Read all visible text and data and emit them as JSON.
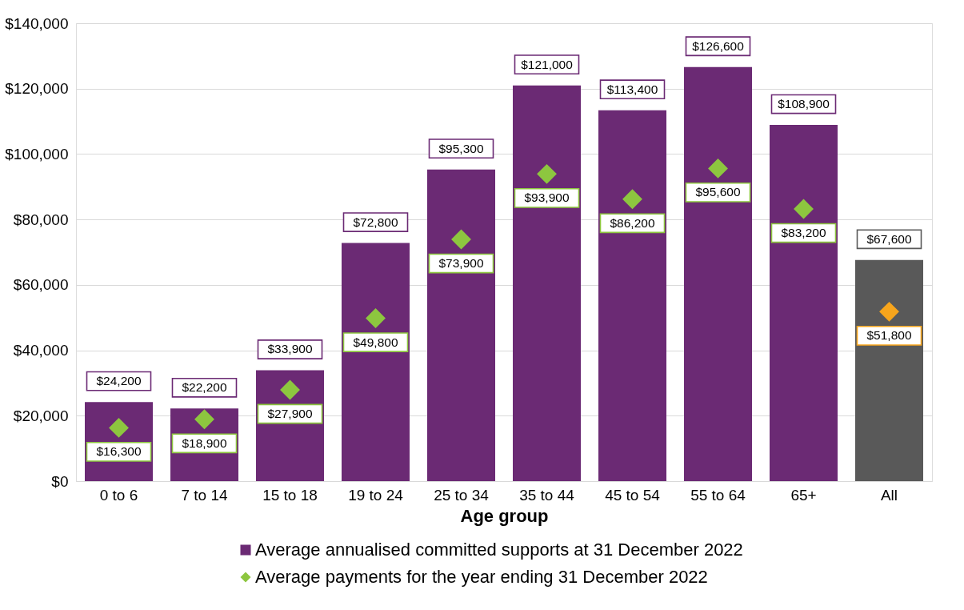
{
  "chart_data": {
    "type": "bar",
    "xlabel": "Age group",
    "categories": [
      "0 to 6",
      "7 to 14",
      "15 to 18",
      "19 to 24",
      "25 to 34",
      "35 to 44",
      "45 to 54",
      "55 to 64",
      "65+",
      "All"
    ],
    "ylim": [
      0,
      140000
    ],
    "yticks": [
      {
        "value": 0,
        "label": "$0"
      },
      {
        "value": 20000,
        "label": "$20,000"
      },
      {
        "value": 40000,
        "label": "$40,000"
      },
      {
        "value": 60000,
        "label": "$60,000"
      },
      {
        "value": 80000,
        "label": "$80,000"
      },
      {
        "value": 100000,
        "label": "$100,000"
      },
      {
        "value": 120000,
        "label": "$120,000"
      },
      {
        "value": 140000,
        "label": "$140,000"
      }
    ],
    "grid": "y",
    "legend": "bottom",
    "series": [
      {
        "name": "Average annualised committed supports at 31 December 2022",
        "type": "bar",
        "color": "#6b2a74",
        "colors": [
          "#6b2a74",
          "#6b2a74",
          "#6b2a74",
          "#6b2a74",
          "#6b2a74",
          "#6b2a74",
          "#6b2a74",
          "#6b2a74",
          "#6b2a74",
          "#595959"
        ],
        "values": [
          24200,
          22200,
          33900,
          72800,
          95300,
          121000,
          113400,
          126600,
          108900,
          67600
        ],
        "value_labels": [
          "$24,200",
          "$22,200",
          "$33,900",
          "$72,800",
          "$95,300",
          "$121,000",
          "$113,400",
          "$126,600",
          "$108,900",
          "$67,600"
        ]
      },
      {
        "name": "Average payments for the year ending 31 December 2022",
        "type": "scatter",
        "marker": "diamond",
        "color": "#8dc63f",
        "colors": [
          "#8dc63f",
          "#8dc63f",
          "#8dc63f",
          "#8dc63f",
          "#8dc63f",
          "#8dc63f",
          "#8dc63f",
          "#8dc63f",
          "#8dc63f",
          "#f7a51c"
        ],
        "values": [
          16300,
          18900,
          27900,
          49800,
          73900,
          93900,
          86200,
          95600,
          83200,
          51800
        ],
        "value_labels": [
          "$16,300",
          "$18,900",
          "$27,900",
          "$49,800",
          "$73,900",
          "$93,900",
          "$86,200",
          "$95,600",
          "$83,200",
          "$51,800"
        ]
      }
    ]
  }
}
